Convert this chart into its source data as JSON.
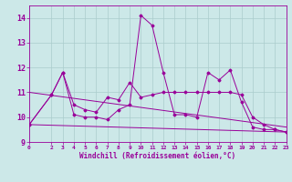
{
  "xlabel": "Windchill (Refroidissement éolien,°C)",
  "xlim": [
    0,
    23
  ],
  "ylim": [
    9,
    14.5
  ],
  "yticks": [
    9,
    10,
    11,
    12,
    13,
    14
  ],
  "xticks": [
    0,
    2,
    3,
    4,
    5,
    6,
    7,
    8,
    9,
    10,
    11,
    12,
    13,
    14,
    15,
    16,
    17,
    18,
    19,
    20,
    21,
    22,
    23
  ],
  "bg_color": "#cce8e8",
  "line_color": "#990099",
  "grid_color": "#aacccc",
  "series": [
    {
      "x": [
        0,
        2,
        3,
        4,
        5,
        6,
        7,
        8,
        9,
        10,
        11,
        12,
        13,
        14,
        15,
        16,
        17,
        18,
        19,
        20,
        21,
        22,
        23
      ],
      "y": [
        9.7,
        10.9,
        11.8,
        10.1,
        10.0,
        10.0,
        9.9,
        10.3,
        10.5,
        14.1,
        13.7,
        11.8,
        10.1,
        10.1,
        10.0,
        11.8,
        11.5,
        11.9,
        10.6,
        9.6,
        9.5,
        9.5,
        9.4
      ]
    },
    {
      "x": [
        0,
        2,
        3,
        4,
        5,
        6,
        7,
        8,
        9,
        10,
        11,
        12,
        13,
        14,
        15,
        16,
        17,
        18,
        19,
        20,
        21,
        22,
        23
      ],
      "y": [
        9.7,
        10.9,
        11.8,
        10.5,
        10.3,
        10.2,
        10.8,
        10.7,
        11.4,
        10.8,
        10.9,
        11.0,
        11.0,
        11.0,
        11.0,
        11.0,
        11.0,
        11.0,
        10.9,
        10.0,
        9.7,
        9.5,
        9.4
      ]
    },
    {
      "x": [
        0,
        23
      ],
      "y": [
        11.0,
        9.6
      ]
    },
    {
      "x": [
        0,
        23
      ],
      "y": [
        9.7,
        9.4
      ]
    }
  ]
}
